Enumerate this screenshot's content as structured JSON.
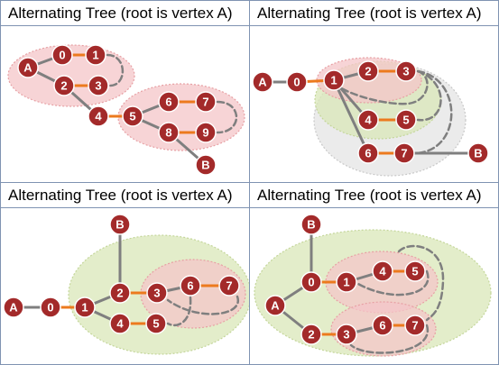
{
  "colors": {
    "node_fill": "#a32a2a",
    "node_stroke": "#ffffff",
    "matched_edge": "#ec7a1e",
    "tree_edge": "#7f7f7f",
    "dashed_cycle": "#7f7f7f",
    "blossom_pink": "#f4c6c8",
    "blossom_green": "#d9e7b8",
    "blossom_gray": "#e4e4e4",
    "panel_border": "#7f93b2"
  },
  "panels": [
    {
      "title": "Alternating Tree (root is vertex A)",
      "blossoms": [
        {
          "color": "blossom_pink"
        },
        {
          "color": "blossom_pink"
        }
      ],
      "nodes": [
        {
          "id": "A",
          "label": "A"
        },
        {
          "id": "0",
          "label": "0"
        },
        {
          "id": "1",
          "label": "1"
        },
        {
          "id": "2",
          "label": "2"
        },
        {
          "id": "3",
          "label": "3"
        },
        {
          "id": "4",
          "label": "4"
        },
        {
          "id": "5",
          "label": "5"
        },
        {
          "id": "6",
          "label": "6"
        },
        {
          "id": "7",
          "label": "7"
        },
        {
          "id": "8",
          "label": "8"
        },
        {
          "id": "9",
          "label": "9"
        },
        {
          "id": "B",
          "label": "B"
        }
      ],
      "edges": [
        {
          "from": "A",
          "to": "0",
          "type": "tree"
        },
        {
          "from": "A",
          "to": "2",
          "type": "tree"
        },
        {
          "from": "0",
          "to": "1",
          "type": "matched"
        },
        {
          "from": "2",
          "to": "3",
          "type": "matched"
        },
        {
          "from": "2",
          "to": "4",
          "type": "tree"
        },
        {
          "from": "4",
          "to": "5",
          "type": "matched"
        },
        {
          "from": "5",
          "to": "6",
          "type": "tree"
        },
        {
          "from": "5",
          "to": "8",
          "type": "tree"
        },
        {
          "from": "6",
          "to": "7",
          "type": "matched"
        },
        {
          "from": "8",
          "to": "9",
          "type": "matched"
        },
        {
          "from": "8",
          "to": "B",
          "type": "tree"
        },
        {
          "from": "1",
          "to": "3",
          "type": "cycle"
        },
        {
          "from": "7",
          "to": "9",
          "type": "cycle"
        }
      ]
    },
    {
      "title": "Alternating Tree (root is vertex A)",
      "blossoms": [
        {
          "color": "blossom_gray"
        },
        {
          "color": "blossom_green"
        },
        {
          "color": "blossom_pink"
        }
      ],
      "nodes": [
        {
          "id": "A",
          "label": "A"
        },
        {
          "id": "0",
          "label": "0"
        },
        {
          "id": "1",
          "label": "1"
        },
        {
          "id": "2",
          "label": "2"
        },
        {
          "id": "3",
          "label": "3"
        },
        {
          "id": "4",
          "label": "4"
        },
        {
          "id": "5",
          "label": "5"
        },
        {
          "id": "6",
          "label": "6"
        },
        {
          "id": "7",
          "label": "7"
        },
        {
          "id": "B",
          "label": "B"
        }
      ],
      "edges": [
        {
          "from": "A",
          "to": "0",
          "type": "tree"
        },
        {
          "from": "0",
          "to": "1",
          "type": "matched"
        },
        {
          "from": "1",
          "to": "2",
          "type": "tree"
        },
        {
          "from": "2",
          "to": "3",
          "type": "matched"
        },
        {
          "from": "1",
          "to": "4",
          "type": "tree"
        },
        {
          "from": "4",
          "to": "5",
          "type": "matched"
        },
        {
          "from": "1",
          "to": "6",
          "type": "tree"
        },
        {
          "from": "6",
          "to": "7",
          "type": "matched"
        },
        {
          "from": "7",
          "to": "B",
          "type": "tree"
        },
        {
          "from": "1",
          "to": "3",
          "type": "cycle"
        },
        {
          "from": "3",
          "to": "5",
          "type": "cycle"
        },
        {
          "from": "3",
          "to": "7",
          "type": "cycle"
        }
      ]
    },
    {
      "title": "Alternating Tree (root is vertex A)",
      "blossoms": [
        {
          "color": "blossom_green"
        },
        {
          "color": "blossom_pink"
        }
      ],
      "nodes": [
        {
          "id": "A",
          "label": "A"
        },
        {
          "id": "0",
          "label": "0"
        },
        {
          "id": "1",
          "label": "1"
        },
        {
          "id": "2",
          "label": "2"
        },
        {
          "id": "3",
          "label": "3"
        },
        {
          "id": "6",
          "label": "6"
        },
        {
          "id": "7",
          "label": "7"
        },
        {
          "id": "4",
          "label": "4"
        },
        {
          "id": "5",
          "label": "5"
        },
        {
          "id": "B",
          "label": "B"
        }
      ],
      "edges": [
        {
          "from": "A",
          "to": "0",
          "type": "tree"
        },
        {
          "from": "0",
          "to": "1",
          "type": "matched"
        },
        {
          "from": "1",
          "to": "2",
          "type": "tree"
        },
        {
          "from": "2",
          "to": "B",
          "type": "tree"
        },
        {
          "from": "2",
          "to": "3",
          "type": "matched"
        },
        {
          "from": "3",
          "to": "6",
          "type": "tree"
        },
        {
          "from": "6",
          "to": "7",
          "type": "matched"
        },
        {
          "from": "1",
          "to": "4",
          "type": "tree"
        },
        {
          "from": "4",
          "to": "5",
          "type": "matched"
        },
        {
          "from": "7",
          "to": "3",
          "type": "cycle"
        },
        {
          "from": "6",
          "to": "5",
          "type": "cycle"
        }
      ]
    },
    {
      "title": "Alternating Tree (root is vertex A)",
      "blossoms": [
        {
          "color": "blossom_green"
        },
        {
          "color": "blossom_pink"
        },
        {
          "color": "blossom_pink"
        }
      ],
      "nodes": [
        {
          "id": "A",
          "label": "A"
        },
        {
          "id": "B",
          "label": "B"
        },
        {
          "id": "0",
          "label": "0"
        },
        {
          "id": "1",
          "label": "1"
        },
        {
          "id": "4",
          "label": "4"
        },
        {
          "id": "5",
          "label": "5"
        },
        {
          "id": "2",
          "label": "2"
        },
        {
          "id": "3",
          "label": "3"
        },
        {
          "id": "6",
          "label": "6"
        },
        {
          "id": "7",
          "label": "7"
        }
      ],
      "edges": [
        {
          "from": "A",
          "to": "0",
          "type": "tree"
        },
        {
          "from": "A",
          "to": "2",
          "type": "tree"
        },
        {
          "from": "0",
          "to": "B",
          "type": "tree"
        },
        {
          "from": "0",
          "to": "1",
          "type": "matched"
        },
        {
          "from": "1",
          "to": "4",
          "type": "tree"
        },
        {
          "from": "4",
          "to": "5",
          "type": "matched"
        },
        {
          "from": "2",
          "to": "3",
          "type": "matched"
        },
        {
          "from": "3",
          "to": "6",
          "type": "tree"
        },
        {
          "from": "6",
          "to": "7",
          "type": "matched"
        },
        {
          "from": "5",
          "to": "1",
          "type": "cycle"
        },
        {
          "from": "7",
          "to": "3",
          "type": "cycle"
        },
        {
          "from": "5",
          "to": "7",
          "type": "cycle"
        }
      ]
    }
  ]
}
